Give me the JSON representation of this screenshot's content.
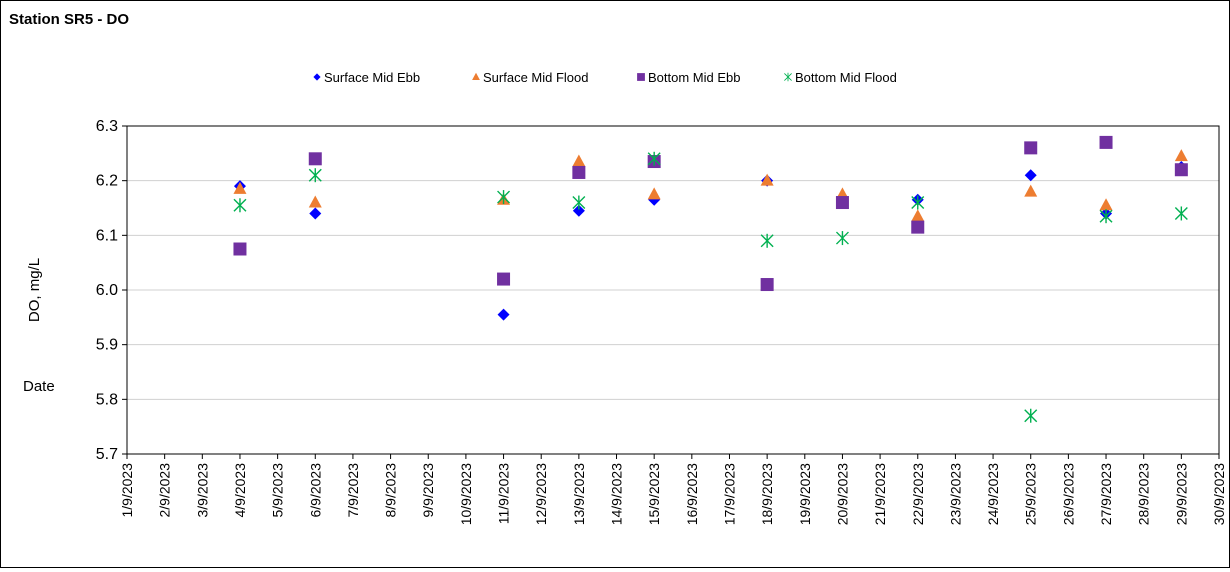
{
  "chart_data": {
    "type": "scatter",
    "title": "Station SR5 - DO",
    "xlabel": "Date",
    "ylabel": "DO, mg/L",
    "ylim": [
      5.7,
      6.3
    ],
    "yticks": [
      "5.7",
      "5.8",
      "5.9",
      "6.0",
      "6.1",
      "6.2",
      "6.3"
    ],
    "xlim": [
      "1/9/2023",
      "30/9/2023"
    ],
    "x_tick_labels": [
      "1/9/2023",
      "2/9/2023",
      "3/9/2023",
      "4/9/2023",
      "5/9/2023",
      "6/9/2023",
      "7/9/2023",
      "8/9/2023",
      "9/9/2023",
      "10/9/2023",
      "11/9/2023",
      "12/9/2023",
      "13/9/2023",
      "14/9/2023",
      "15/9/2023",
      "16/9/2023",
      "17/9/2023",
      "18/9/2023",
      "19/9/2023",
      "20/9/2023",
      "21/9/2023",
      "22/9/2023",
      "23/9/2023",
      "24/9/2023",
      "25/9/2023",
      "26/9/2023",
      "27/9/2023",
      "28/9/2023",
      "29/9/2023",
      "30/9/2023"
    ],
    "grid": "horizontal",
    "legend_position": "top",
    "series": [
      {
        "name": "Surface Mid Ebb",
        "marker": "diamond",
        "color": "#0000FF",
        "points": [
          {
            "x": "4/9/2023",
            "y": 6.19
          },
          {
            "x": "6/9/2023",
            "y": 6.14
          },
          {
            "x": "11/9/2023",
            "y": 5.955
          },
          {
            "x": "13/9/2023",
            "y": 6.145
          },
          {
            "x": "15/9/2023",
            "y": 6.165
          },
          {
            "x": "18/9/2023",
            "y": 6.2
          },
          {
            "x": "20/9/2023",
            "y": 6.165
          },
          {
            "x": "22/9/2023",
            "y": 6.165
          },
          {
            "x": "25/9/2023",
            "y": 6.21
          },
          {
            "x": "27/9/2023",
            "y": 6.14
          },
          {
            "x": "29/9/2023",
            "y": 6.225
          }
        ]
      },
      {
        "name": "Surface Mid Flood",
        "marker": "triangle",
        "color": "#ED7D31",
        "points": [
          {
            "x": "4/9/2023",
            "y": 6.185
          },
          {
            "x": "6/9/2023",
            "y": 6.16
          },
          {
            "x": "11/9/2023",
            "y": 6.165
          },
          {
            "x": "13/9/2023",
            "y": 6.235
          },
          {
            "x": "15/9/2023",
            "y": 6.175
          },
          {
            "x": "18/9/2023",
            "y": 6.2
          },
          {
            "x": "20/9/2023",
            "y": 6.175
          },
          {
            "x": "22/9/2023",
            "y": 6.135
          },
          {
            "x": "25/9/2023",
            "y": 6.18
          },
          {
            "x": "27/9/2023",
            "y": 6.155
          },
          {
            "x": "29/9/2023",
            "y": 6.245
          }
        ]
      },
      {
        "name": "Bottom Mid Ebb",
        "marker": "square",
        "color": "#7030A0",
        "points": [
          {
            "x": "4/9/2023",
            "y": 6.075
          },
          {
            "x": "6/9/2023",
            "y": 6.24
          },
          {
            "x": "11/9/2023",
            "y": 6.02
          },
          {
            "x": "13/9/2023",
            "y": 6.215
          },
          {
            "x": "15/9/2023",
            "y": 6.235
          },
          {
            "x": "18/9/2023",
            "y": 6.01
          },
          {
            "x": "20/9/2023",
            "y": 6.16
          },
          {
            "x": "22/9/2023",
            "y": 6.115
          },
          {
            "x": "25/9/2023",
            "y": 6.26
          },
          {
            "x": "27/9/2023",
            "y": 6.27
          },
          {
            "x": "29/9/2023",
            "y": 6.22
          }
        ]
      },
      {
        "name": "Bottom Mid Flood",
        "marker": "asterisk",
        "color": "#00B050",
        "points": [
          {
            "x": "4/9/2023",
            "y": 6.155
          },
          {
            "x": "6/9/2023",
            "y": 6.21
          },
          {
            "x": "11/9/2023",
            "y": 6.17
          },
          {
            "x": "13/9/2023",
            "y": 6.16
          },
          {
            "x": "15/9/2023",
            "y": 6.24
          },
          {
            "x": "18/9/2023",
            "y": 6.09
          },
          {
            "x": "20/9/2023",
            "y": 6.095
          },
          {
            "x": "22/9/2023",
            "y": 6.16
          },
          {
            "x": "25/9/2023",
            "y": 5.77
          },
          {
            "x": "27/9/2023",
            "y": 6.135
          },
          {
            "x": "29/9/2023",
            "y": 6.14
          }
        ]
      }
    ]
  }
}
